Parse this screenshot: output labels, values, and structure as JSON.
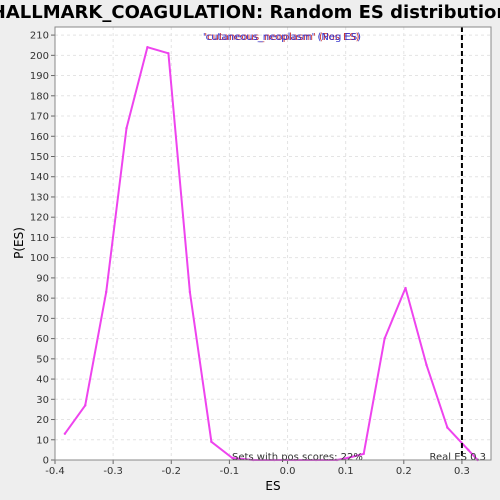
{
  "chart_data": {
    "type": "line",
    "title": "HALLMARK_COAGULATION: Random ES distribution",
    "xlabel": "ES",
    "ylabel": "P(ES)",
    "xlim": [
      -0.4,
      0.35
    ],
    "ylim": [
      0,
      214
    ],
    "x_ticks": [
      -0.4,
      -0.3,
      -0.2,
      -0.1,
      0.0,
      0.1,
      0.2,
      0.3
    ],
    "x_tick_labels": [
      "-0.4",
      "-0.3",
      "-0.2",
      "-0.1",
      "0.0",
      "0.1",
      "0.2",
      "0.3"
    ],
    "y_ticks": [
      0,
      10,
      20,
      30,
      40,
      50,
      60,
      70,
      80,
      90,
      100,
      110,
      120,
      130,
      140,
      150,
      160,
      170,
      180,
      190,
      200,
      210
    ],
    "grid": true,
    "series": [
      {
        "color": "#ee44ee",
        "x": [
          -0.383,
          -0.348,
          -0.312,
          -0.277,
          -0.241,
          -0.205,
          -0.168,
          -0.131,
          -0.095,
          -0.059,
          -0.023,
          0.013,
          0.049,
          0.085,
          0.103,
          0.131,
          0.167,
          0.203,
          0.239,
          0.275,
          0.311,
          0.327
        ],
        "y": [
          13,
          27,
          83,
          164,
          204,
          201,
          83,
          9,
          1,
          0,
          0,
          0,
          0,
          0,
          1,
          3,
          60,
          85,
          47,
          16,
          5,
          0
        ]
      }
    ],
    "real_es": 0.3,
    "real_es_label": "Real ES 0.3",
    "pos_scores_label": "Sets with pos scores: 22%",
    "legend": {
      "line1": "'cutaneous_neoplasm' (Pos ES)",
      "line2": "'cutaneous_neoplasm' (Neg ES)",
      "line1_color": "#cc3333",
      "line2_color": "#3333cc"
    },
    "colors": {
      "background": "#eeeeee",
      "plot_background": "#ffffff",
      "series": "#ee44ee",
      "real_es_line": "#000000"
    }
  }
}
